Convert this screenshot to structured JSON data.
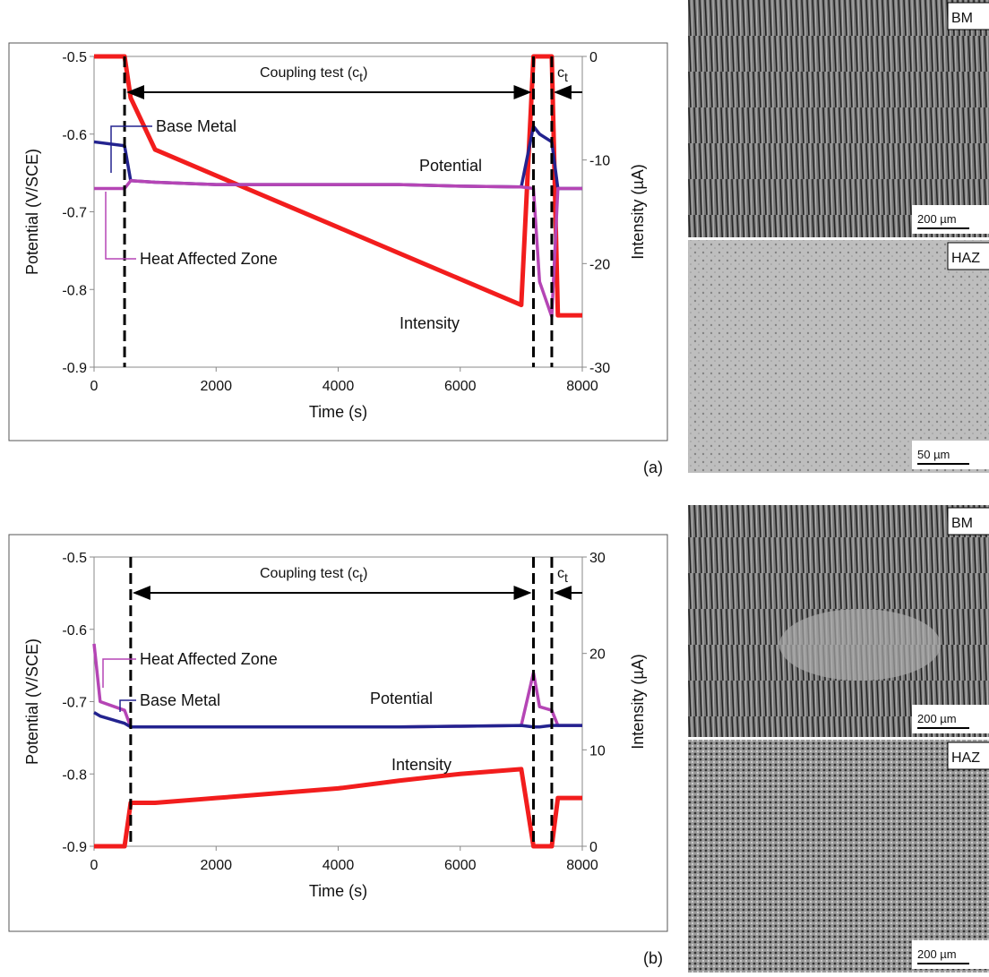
{
  "chart_data": [
    {
      "type": "line",
      "panel_label": "(a)",
      "xlabel": "Time (s)",
      "ylabel": "Potential (V/SCE)",
      "y2label": "Intensity (µA)",
      "x": [
        0,
        500,
        600,
        1000,
        2000,
        3000,
        4000,
        5000,
        6000,
        7000,
        7200,
        7300,
        7500,
        7600,
        8000
      ],
      "series": [
        {
          "name": "Base Metal",
          "color": "#23238f",
          "values": [
            -0.61,
            -0.615,
            -0.66,
            -0.662,
            -0.665,
            -0.665,
            -0.665,
            -0.665,
            -0.667,
            -0.668,
            -0.59,
            -0.6,
            -0.61,
            -0.67,
            -0.67
          ]
        },
        {
          "name": "Heat Affected Zone",
          "color": "#b545b5",
          "values": [
            -0.67,
            -0.67,
            -0.66,
            -0.662,
            -0.665,
            -0.665,
            -0.665,
            -0.665,
            -0.667,
            -0.668,
            -0.67,
            -0.79,
            -0.835,
            -0.67,
            -0.67
          ]
        },
        {
          "name": "Intensity",
          "color": "#f21d1d",
          "axis": "y2",
          "values": [
            0,
            0,
            -4,
            -9,
            -11.5,
            -14,
            -16.5,
            -19,
            -21.5,
            -24,
            0,
            0,
            0,
            -25,
            -25
          ]
        }
      ],
      "annotations": [
        "Potential",
        "Intensity"
      ],
      "coupling_label": [
        "Coupling test (c",
        "t",
        ")"
      ],
      "short_label": [
        "c",
        "t"
      ],
      "markers_x": [
        500,
        7200,
        7500
      ],
      "xlim": [
        0,
        8000
      ],
      "xticks": [
        0,
        2000,
        4000,
        6000,
        8000
      ],
      "ylim": [
        -0.9,
        -0.5
      ],
      "yticks": [
        -0.9,
        -0.8,
        -0.7,
        -0.6,
        -0.5
      ],
      "y2lim": [
        -30,
        0
      ],
      "y2ticks": [
        -30,
        -20,
        -10,
        0
      ]
    },
    {
      "type": "line",
      "panel_label": "(b)",
      "xlabel": "Time (s)",
      "ylabel": "Potential (V/SCE)",
      "y2label": "Intensity (µA)",
      "x": [
        0,
        100,
        500,
        600,
        1000,
        2000,
        3000,
        4000,
        5000,
        6000,
        7000,
        7200,
        7300,
        7500,
        7600,
        8000
      ],
      "series": [
        {
          "name": "Heat Affected Zone",
          "color": "#b545b5",
          "values": [
            -0.62,
            -0.7,
            -0.712,
            -0.735,
            -0.735,
            -0.735,
            -0.735,
            -0.735,
            -0.735,
            -0.734,
            -0.733,
            -0.66,
            -0.707,
            -0.712,
            -0.733,
            -0.733
          ]
        },
        {
          "name": "Base Metal",
          "color": "#23238f",
          "values": [
            -0.715,
            -0.72,
            -0.73,
            -0.735,
            -0.735,
            -0.735,
            -0.735,
            -0.735,
            -0.735,
            -0.734,
            -0.733,
            -0.735,
            -0.735,
            -0.733,
            -0.733,
            -0.733
          ]
        },
        {
          "name": "Intensity",
          "color": "#f21d1d",
          "axis": "y2",
          "values": [
            0,
            0,
            0,
            4.5,
            4.5,
            5,
            5.5,
            6,
            6.8,
            7.5,
            8,
            0,
            0,
            0,
            5,
            5
          ]
        }
      ],
      "annotations": [
        "Potential",
        "Intensity"
      ],
      "coupling_label": [
        "Coupling test (c",
        "t",
        ")"
      ],
      "short_label": [
        "c",
        "t"
      ],
      "markers_x": [
        600,
        7200,
        7500
      ],
      "xlim": [
        0,
        8000
      ],
      "xticks": [
        0,
        2000,
        4000,
        6000,
        8000
      ],
      "ylim": [
        -0.9,
        -0.5
      ],
      "yticks": [
        -0.9,
        -0.8,
        -0.7,
        -0.6,
        -0.5
      ],
      "y2lim": [
        0,
        30
      ],
      "y2ticks": [
        0,
        10,
        20,
        30
      ]
    }
  ],
  "micrographs": [
    {
      "label": "BM",
      "scale": "200 µm"
    },
    {
      "label": "HAZ",
      "scale": "50 µm"
    },
    {
      "label": "BM",
      "scale": "200 µm"
    },
    {
      "label": "HAZ",
      "scale": "200 µm"
    }
  ]
}
